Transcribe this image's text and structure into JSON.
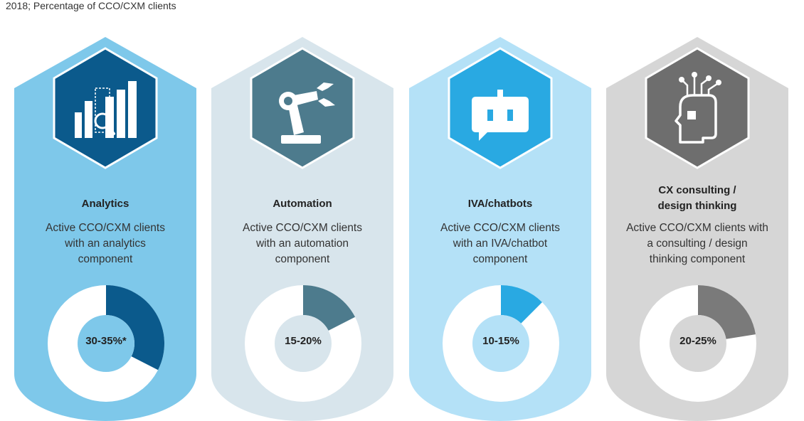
{
  "subtitle": "2018; Percentage of CCO/CXM clients",
  "chart_data": {
    "type": "pie",
    "subtitle": "2018; Percentage of CCO/CXM clients",
    "categories": [
      "Analytics",
      "Automation",
      "IVA/chatbots",
      "CX consulting / design thinking"
    ],
    "labels": [
      "30-35%*",
      "15-20%",
      "10-15%",
      "20-25%"
    ],
    "values": [
      32.5,
      17.5,
      12.5,
      22.5
    ],
    "descriptions": [
      "Active CCO/CXM clients with an analytics component",
      "Active CCO/CXM clients with an automation component",
      "Active CCO/CXM clients with an IVA/chatbot component",
      "Active CCO/CXM clients with a consulting / design thinking component"
    ]
  },
  "panels": [
    {
      "title_lines": [
        "Analytics"
      ],
      "desc_lines": [
        "Active CCO/CXM clients",
        "with an analytics",
        "component"
      ],
      "label": "30-35%*",
      "icon": "analytics-chart-magnifier-icon",
      "colors": {
        "bg": "#7ec8ea",
        "hex": "#0b5a8c",
        "slice": "#0b5a8c",
        "hole": "#7ec8ea"
      }
    },
    {
      "title_lines": [
        "Automation"
      ],
      "desc_lines": [
        "Active CCO/CXM clients",
        "with an automation",
        "component"
      ],
      "label": "15-20%",
      "icon": "robot-arm-icon",
      "colors": {
        "bg": "#d8e5ec",
        "hex": "#4d7b8d",
        "slice": "#4d7b8d",
        "hole": "#d8e5ec"
      }
    },
    {
      "title_lines": [
        "IVA/chatbots"
      ],
      "desc_lines": [
        "Active CCO/CXM clients",
        "with an IVA/chatbot",
        "component"
      ],
      "label": "10-15%",
      "icon": "chatbot-icon",
      "colors": {
        "bg": "#b4e1f7",
        "hex": "#29a9e2",
        "slice": "#29a9e2",
        "hole": "#b4e1f7"
      }
    },
    {
      "title_lines": [
        "CX consulting /",
        "design thinking"
      ],
      "desc_lines": [
        "Active CCO/CXM clients with",
        "a consulting / design",
        "thinking component"
      ],
      "label": "20-25%",
      "icon": "head-circuit-icon",
      "colors": {
        "bg": "#d6d6d6",
        "hex": "#6e6e6e",
        "slice": "#7a7a7a",
        "hole": "#d6d6d6"
      }
    }
  ]
}
